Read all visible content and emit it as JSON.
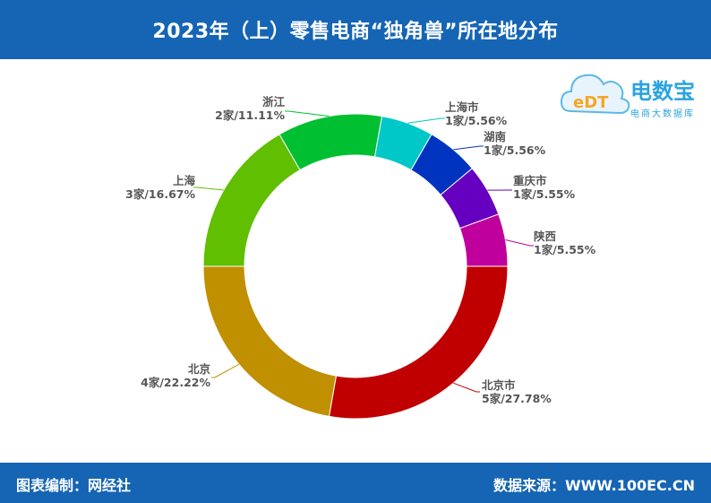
{
  "header": {
    "title": "2023年（上）零售电商“独角兽”所在地分布"
  },
  "footer": {
    "left": "图表编制：网经社",
    "right": "数据来源：WWW.100EC.CN"
  },
  "logo": {
    "name": "电数宝",
    "sub": "电商大数据库",
    "mark": "eDT"
  },
  "chart_data": {
    "type": "pie",
    "donut": true,
    "slices": [
      {
        "name": "北京市",
        "count": 5,
        "text": "5家/27.78%",
        "percent": 27.78,
        "color": "#c00000"
      },
      {
        "name": "北京",
        "count": 4,
        "text": "4家/22.22%",
        "percent": 22.22,
        "color": "#c09000"
      },
      {
        "name": "上海",
        "count": 3,
        "text": "3家/16.67%",
        "percent": 16.67,
        "color": "#5fbf00"
      },
      {
        "name": "浙江",
        "count": 2,
        "text": "2家/11.11%",
        "percent": 11.11,
        "color": "#00c032"
      },
      {
        "name": "上海市",
        "count": 1,
        "text": "1家/5.56%",
        "percent": 5.56,
        "color": "#00c8c8"
      },
      {
        "name": "湖南",
        "count": 1,
        "text": "1家/5.56%",
        "percent": 5.56,
        "color": "#0034c0"
      },
      {
        "name": "重庆市",
        "count": 1,
        "text": "1家/5.55%",
        "percent": 5.55,
        "color": "#6600c0"
      },
      {
        "name": "陕西",
        "count": 1,
        "text": "1家/5.55%",
        "percent": 5.55,
        "color": "#c0009c"
      }
    ]
  }
}
